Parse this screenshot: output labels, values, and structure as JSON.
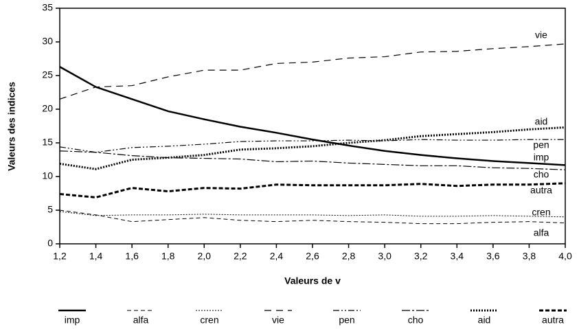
{
  "chart_data": {
    "type": "line",
    "xlabel": "Valeurs de v",
    "ylabel": "Valeurs des indices",
    "x": [
      1.2,
      1.4,
      1.6,
      1.8,
      2.0,
      2.2,
      2.4,
      2.6,
      2.8,
      3.0,
      3.2,
      3.4,
      3.6,
      3.8,
      4.0
    ],
    "series": [
      {
        "name": "imp",
        "color": "#000000",
        "values": [
          26.3,
          23.3,
          21.5,
          19.7,
          18.5,
          17.4,
          16.5,
          15.5,
          14.6,
          13.8,
          13.2,
          12.7,
          12.3,
          12.0,
          11.7
        ]
      },
      {
        "name": "alfa",
        "color": "#000000",
        "values": [
          5.0,
          4.3,
          3.3,
          3.6,
          3.9,
          3.5,
          3.3,
          3.5,
          3.3,
          3.2,
          3.0,
          3.0,
          3.2,
          3.3,
          3.1
        ]
      },
      {
        "name": "cren",
        "color": "#000000",
        "values": [
          4.8,
          4.2,
          4.3,
          4.3,
          4.4,
          4.3,
          4.3,
          4.3,
          4.2,
          4.3,
          4.1,
          4.1,
          4.2,
          4.1,
          4.0
        ]
      },
      {
        "name": "vie",
        "color": "#000000",
        "values": [
          21.5,
          23.3,
          23.5,
          24.8,
          25.8,
          25.8,
          26.8,
          27.0,
          27.6,
          27.8,
          28.5,
          28.6,
          29.0,
          29.3,
          29.7
        ]
      },
      {
        "name": "pen",
        "color": "#000000",
        "values": [
          14.4,
          13.6,
          14.3,
          14.5,
          14.8,
          15.2,
          15.3,
          15.3,
          15.4,
          15.3,
          15.5,
          15.4,
          15.4,
          15.5,
          15.5
        ]
      },
      {
        "name": "cho",
        "color": "#000000",
        "values": [
          13.8,
          13.6,
          13.1,
          12.8,
          12.7,
          12.6,
          12.2,
          12.3,
          12.0,
          11.8,
          11.6,
          11.6,
          11.3,
          11.2,
          11.0
        ]
      },
      {
        "name": "aid",
        "color": "#000000",
        "values": [
          11.9,
          11.1,
          12.5,
          12.8,
          13.2,
          14.0,
          14.2,
          14.5,
          15.0,
          15.4,
          16.0,
          16.3,
          16.6,
          17.0,
          17.3
        ]
      },
      {
        "name": "autra",
        "color": "#000000",
        "values": [
          7.4,
          6.9,
          8.3,
          7.8,
          8.3,
          8.2,
          8.8,
          8.7,
          8.7,
          8.7,
          8.9,
          8.6,
          8.8,
          8.8,
          9.0
        ]
      }
    ],
    "xlim": [
      1.2,
      4.0
    ],
    "xticks": [
      {
        "value": 1.2,
        "label": "1,2"
      },
      {
        "value": 1.4,
        "label": "1,4"
      },
      {
        "value": 1.6,
        "label": "1,6"
      },
      {
        "value": 1.8,
        "label": "1,8"
      },
      {
        "value": 2.0,
        "label": "2,0"
      },
      {
        "value": 2.2,
        "label": "2,2"
      },
      {
        "value": 2.4,
        "label": "2,4"
      },
      {
        "value": 2.6,
        "label": "2,6"
      },
      {
        "value": 2.8,
        "label": "2,8"
      },
      {
        "value": 3.0,
        "label": "3,0"
      },
      {
        "value": 3.2,
        "label": "3,2"
      },
      {
        "value": 3.4,
        "label": "3,4"
      },
      {
        "value": 3.6,
        "label": "3,6"
      },
      {
        "value": 3.8,
        "label": "3,8"
      },
      {
        "value": 4.0,
        "label": "4,0"
      }
    ],
    "ylim": [
      0,
      35
    ],
    "yticks": [
      0,
      5,
      10,
      15,
      20,
      25,
      30,
      35
    ],
    "legend": "bottom"
  }
}
